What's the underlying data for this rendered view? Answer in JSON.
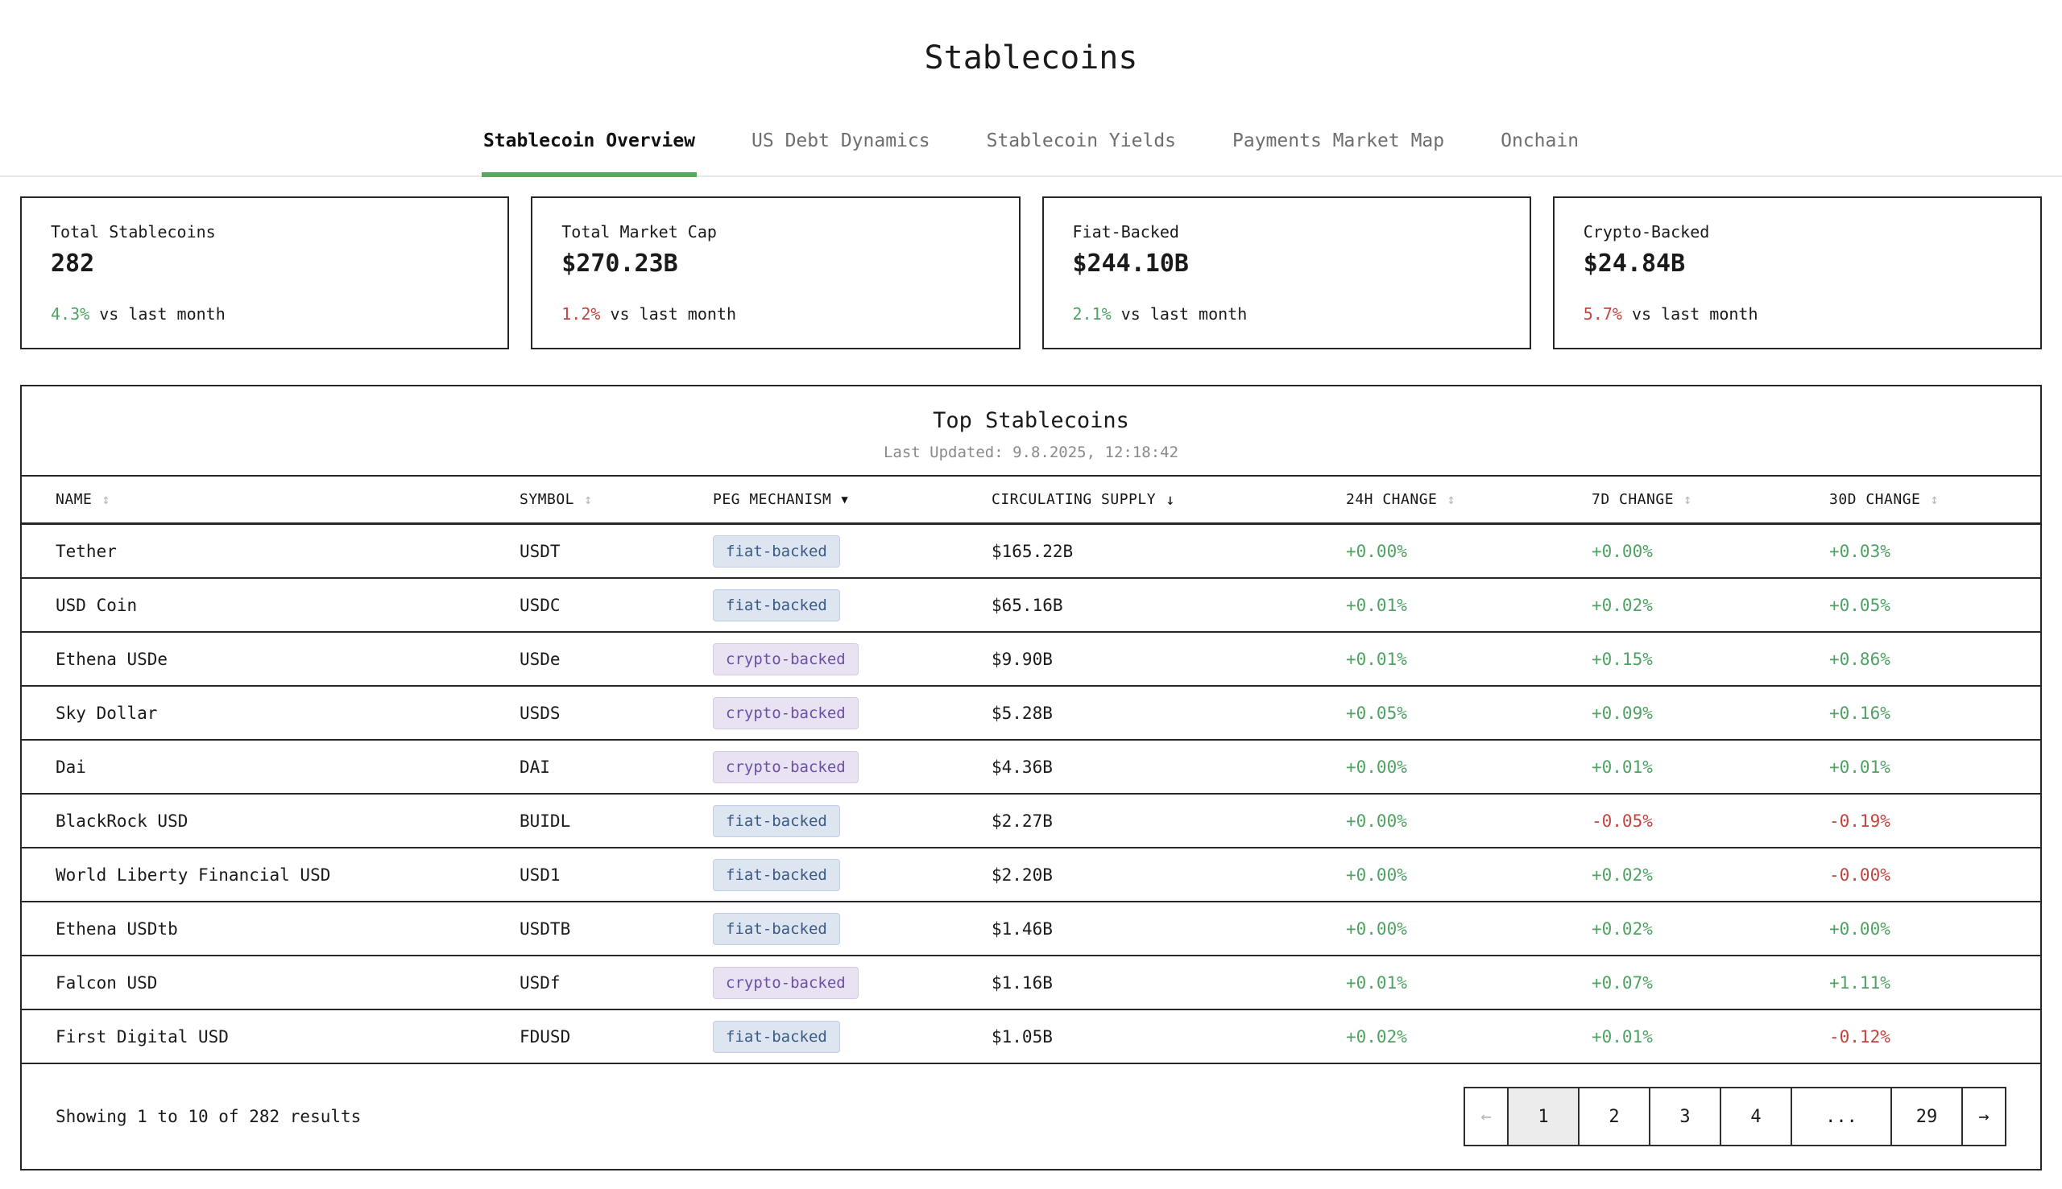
{
  "page": {
    "title": "Stablecoins"
  },
  "icons": {
    "sort": "↕",
    "sort_desc": "▼",
    "sort_down": "↓"
  },
  "colors": {
    "accent_green_underline": "#57a85c",
    "positive": "#4fa263",
    "negative": "#c2443e",
    "fiat_badge_bg": "#dde5f1",
    "fiat_badge_text": "#3c5a84",
    "crypto_badge_bg": "#e9e2f3",
    "crypto_badge_text": "#6c50a4"
  },
  "tabs": [
    {
      "label": "Stablecoin Overview",
      "active": true
    },
    {
      "label": "US Debt Dynamics",
      "active": false
    },
    {
      "label": "Stablecoin Yields",
      "active": false
    },
    {
      "label": "Payments Market Map",
      "active": false
    },
    {
      "label": "Onchain",
      "active": false
    }
  ],
  "stats": [
    {
      "label": "Total Stablecoins",
      "value": "282",
      "change": "4.3%",
      "trend": "up",
      "suffix": "vs last month"
    },
    {
      "label": "Total Market Cap",
      "value": "$270.23B",
      "change": "1.2%",
      "trend": "down",
      "suffix": "vs last month"
    },
    {
      "label": "Fiat-Backed",
      "value": "$244.10B",
      "change": "2.1%",
      "trend": "up",
      "suffix": "vs last month"
    },
    {
      "label": "Crypto-Backed",
      "value": "$24.84B",
      "change": "5.7%",
      "trend": "down",
      "suffix": "vs last month"
    }
  ],
  "table": {
    "title": "Top Stablecoins",
    "last_updated": "Last Updated: 9.8.2025, 12:18:42",
    "columns": [
      {
        "label": "NAME",
        "sort": "unsorted"
      },
      {
        "label": "SYMBOL",
        "sort": "unsorted"
      },
      {
        "label": "PEG MECHANISM",
        "sort": "filter-desc"
      },
      {
        "label": "CIRCULATING SUPPLY",
        "sort": "descending"
      },
      {
        "label": "24H CHANGE",
        "sort": "unsorted"
      },
      {
        "label": "7D CHANGE",
        "sort": "unsorted"
      },
      {
        "label": "30D CHANGE",
        "sort": "unsorted"
      }
    ],
    "rows": [
      {
        "name": "Tether",
        "symbol": "USDT",
        "peg": "fiat-backed",
        "peg_type": "fiat",
        "supply": "$165.22B",
        "h24": {
          "value": "+0.00%",
          "trend": "up"
        },
        "d7": {
          "value": "+0.00%",
          "trend": "up"
        },
        "d30": {
          "value": "+0.03%",
          "trend": "up"
        }
      },
      {
        "name": "USD Coin",
        "symbol": "USDC",
        "peg": "fiat-backed",
        "peg_type": "fiat",
        "supply": "$65.16B",
        "h24": {
          "value": "+0.01%",
          "trend": "up"
        },
        "d7": {
          "value": "+0.02%",
          "trend": "up"
        },
        "d30": {
          "value": "+0.05%",
          "trend": "up"
        }
      },
      {
        "name": "Ethena USDe",
        "symbol": "USDe",
        "peg": "crypto-backed",
        "peg_type": "crypto",
        "supply": "$9.90B",
        "h24": {
          "value": "+0.01%",
          "trend": "up"
        },
        "d7": {
          "value": "+0.15%",
          "trend": "up"
        },
        "d30": {
          "value": "+0.86%",
          "trend": "up"
        }
      },
      {
        "name": "Sky Dollar",
        "symbol": "USDS",
        "peg": "crypto-backed",
        "peg_type": "crypto",
        "supply": "$5.28B",
        "h24": {
          "value": "+0.05%",
          "trend": "up"
        },
        "d7": {
          "value": "+0.09%",
          "trend": "up"
        },
        "d30": {
          "value": "+0.16%",
          "trend": "up"
        }
      },
      {
        "name": "Dai",
        "symbol": "DAI",
        "peg": "crypto-backed",
        "peg_type": "crypto",
        "supply": "$4.36B",
        "h24": {
          "value": "+0.00%",
          "trend": "up"
        },
        "d7": {
          "value": "+0.01%",
          "trend": "up"
        },
        "d30": {
          "value": "+0.01%",
          "trend": "up"
        }
      },
      {
        "name": "BlackRock USD",
        "symbol": "BUIDL",
        "peg": "fiat-backed",
        "peg_type": "fiat",
        "supply": "$2.27B",
        "h24": {
          "value": "+0.00%",
          "trend": "up"
        },
        "d7": {
          "value": "-0.05%",
          "trend": "down"
        },
        "d30": {
          "value": "-0.19%",
          "trend": "down"
        }
      },
      {
        "name": "World Liberty Financial USD",
        "symbol": "USD1",
        "peg": "fiat-backed",
        "peg_type": "fiat",
        "supply": "$2.20B",
        "h24": {
          "value": "+0.00%",
          "trend": "up"
        },
        "d7": {
          "value": "+0.02%",
          "trend": "up"
        },
        "d30": {
          "value": "-0.00%",
          "trend": "down"
        }
      },
      {
        "name": "Ethena USDtb",
        "symbol": "USDTB",
        "peg": "fiat-backed",
        "peg_type": "fiat",
        "supply": "$1.46B",
        "h24": {
          "value": "+0.00%",
          "trend": "up"
        },
        "d7": {
          "value": "+0.02%",
          "trend": "up"
        },
        "d30": {
          "value": "+0.00%",
          "trend": "up"
        }
      },
      {
        "name": "Falcon USD",
        "symbol": "USDf",
        "peg": "crypto-backed",
        "peg_type": "crypto",
        "supply": "$1.16B",
        "h24": {
          "value": "+0.01%",
          "trend": "up"
        },
        "d7": {
          "value": "+0.07%",
          "trend": "up"
        },
        "d30": {
          "value": "+1.11%",
          "trend": "up"
        }
      },
      {
        "name": "First Digital USD",
        "symbol": "FDUSD",
        "peg": "fiat-backed",
        "peg_type": "fiat",
        "supply": "$1.05B",
        "h24": {
          "value": "+0.02%",
          "trend": "up"
        },
        "d7": {
          "value": "+0.01%",
          "trend": "up"
        },
        "d30": {
          "value": "-0.12%",
          "trend": "down"
        }
      }
    ]
  },
  "pagination": {
    "summary": "Showing 1 to 10 of 282 results",
    "prev_label": "←",
    "next_label": "→",
    "pages": [
      "1",
      "2",
      "3",
      "4",
      "...",
      "29"
    ],
    "active_page": "1"
  }
}
